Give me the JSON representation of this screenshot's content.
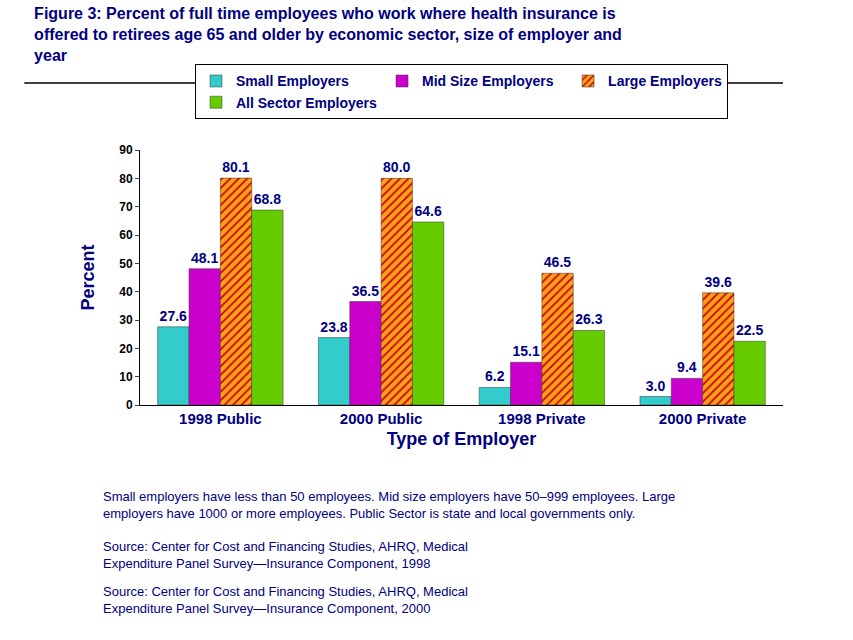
{
  "chart_data": {
    "type": "bar",
    "title": "Figure 3: Percent of full time employees who work where health insurance is offered to retirees age 65 and older by economic sector, size of employer and year",
    "x_label": "Type of Employer",
    "y_label": "Percent",
    "categories": [
      "1998 Public",
      "2000 Public",
      "1998 Private",
      "2000 Private"
    ],
    "series": [
      {
        "name": "Small Employers",
        "color": "#33CCCC",
        "values": [
          27.6,
          23.8,
          6.2,
          3.0
        ],
        "value_labels": [
          "27.6",
          "23.8",
          "6.2",
          "3.0"
        ]
      },
      {
        "name": "Mid Size Employers",
        "color": "#CC00CC",
        "values": [
          48.1,
          36.5,
          15.1,
          9.4
        ],
        "value_labels": [
          "48.1",
          "36.5",
          "15.1",
          "9.4"
        ]
      },
      {
        "name": "Large Employers",
        "color": "#F7A21B",
        "values": [
          80.1,
          80.0,
          46.5,
          39.6
        ],
        "value_labels": [
          "80.1",
          "80.0",
          "46.5",
          "39.6"
        ]
      },
      {
        "name": "All Sector Employers",
        "color": "#66CC00",
        "values": [
          68.8,
          64.6,
          26.3,
          22.5
        ],
        "value_labels": [
          "68.8",
          "64.6",
          "26.3",
          "22.5"
        ]
      }
    ],
    "ylim": [
      0,
      90
    ],
    "yticks": [
      0,
      10,
      20,
      30,
      40,
      50,
      60,
      70,
      80,
      90
    ],
    "grid": false,
    "legend": "top",
    "data_labels": true,
    "annotations": [
      "Small employers have less than 50 employees. Mid size employers have 50–999 employees. Large employers have 1000 or more employees. Public Sector is state and local governments only.",
      "Source: Center for Cost and Financing Studies, AHRQ, Medical Expenditure Panel Survey—Insurance Component, 1998",
      "Source: Center for Cost and Financing Studies, AHRQ, Medical Expenditure Panel Survey—Insurance Component, 2000"
    ]
  }
}
